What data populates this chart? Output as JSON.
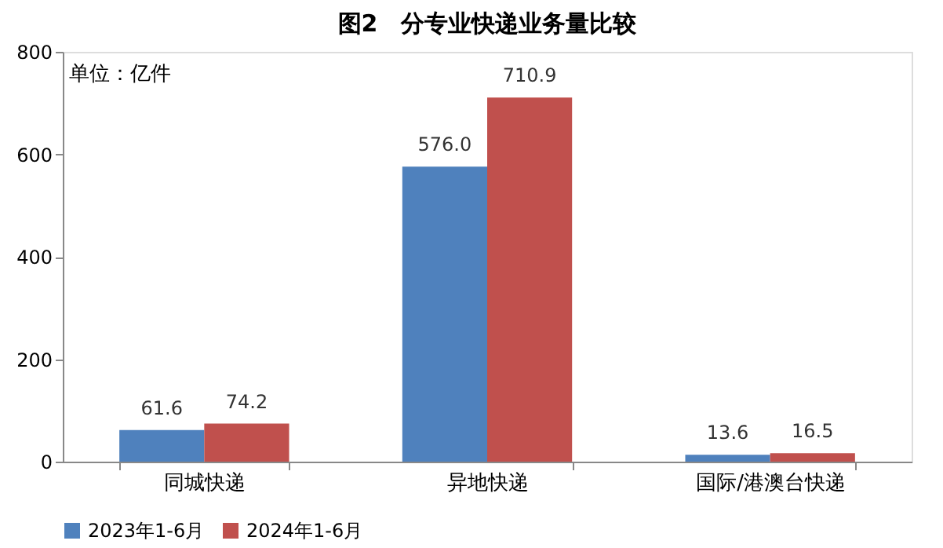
{
  "chart_data": {
    "type": "bar",
    "title": "图2　分专业快递业务量比较",
    "categories": [
      "同城快递",
      "异地快递",
      "国际/港澳台快递"
    ],
    "series": [
      {
        "name": "2023年1-6月",
        "color": "#4f81bd",
        "values": [
          61.6,
          576.0,
          13.6
        ],
        "value_labels": [
          "61.6",
          "576.0",
          "13.6"
        ]
      },
      {
        "name": "2024年1-6月",
        "color": "#c0504d",
        "values": [
          74.2,
          710.9,
          16.5
        ],
        "value_labels": [
          "74.2",
          "710.9",
          "16.5"
        ]
      }
    ],
    "annotations": [
      "单位：亿件"
    ],
    "ylim": [
      0,
      800
    ],
    "yticks": [
      0,
      200,
      400,
      600,
      800
    ],
    "grid": false,
    "legend": "bottom"
  }
}
